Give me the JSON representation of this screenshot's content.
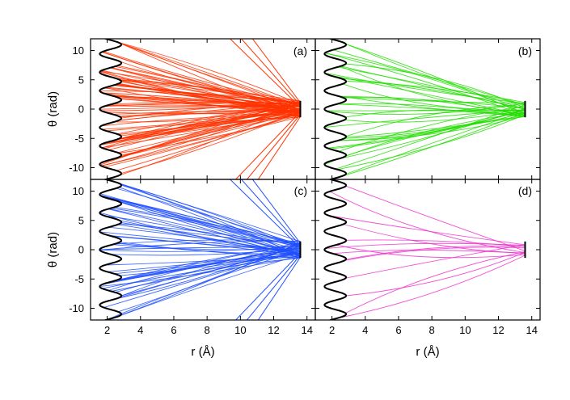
{
  "chart_data": {
    "type": "line",
    "layout": "2x2 panels sharing axes",
    "x_axis": {
      "label": "r (Å)",
      "range": [
        1,
        14.5
      ],
      "ticks": [
        2,
        4,
        6,
        8,
        10,
        12,
        14
      ]
    },
    "y_axis": {
      "label": "θ (rad)",
      "range": [
        -12,
        12
      ],
      "ticks": [
        10,
        5,
        0,
        -5,
        -10
      ]
    },
    "grid": false,
    "legend": "none",
    "potential_curve": {
      "color": "#000000",
      "description_of_shape": "periodic scalloped boundary",
      "r_min": 1.55,
      "r_max": 2.85,
      "period": 3.1416
    },
    "target_segment": {
      "r": 13.6,
      "theta_range": [
        -1.4,
        1.4
      ]
    },
    "panels": [
      {
        "id": "a",
        "label": "(a)",
        "color": "#ff3300",
        "trajectories": 90,
        "endpoint_spread": 1.4,
        "edge_rays": true
      },
      {
        "id": "b",
        "label": "(b)",
        "color": "#22dd00",
        "trajectories": 40,
        "endpoint_spread": 1.3,
        "edge_rays": false
      },
      {
        "id": "c",
        "label": "(c)",
        "color": "#1f4fff",
        "trajectories": 60,
        "endpoint_spread": 1.5,
        "edge_rays": true
      },
      {
        "id": "d",
        "label": "(d)",
        "color": "#ee33cc",
        "trajectories": 14,
        "endpoint_spread": 1.1,
        "edge_rays": false
      }
    ]
  }
}
